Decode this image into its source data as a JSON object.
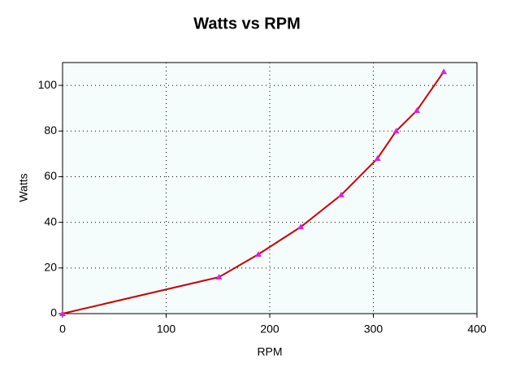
{
  "chart_data": {
    "type": "line",
    "title": "Watts vs RPM",
    "x_label": "RPM",
    "y_label": "Watts",
    "x": [
      0,
      151,
      189,
      230,
      269,
      304,
      322,
      342,
      368
    ],
    "series": [
      {
        "name": "Watts",
        "color": "#cc0000",
        "marker_color": "#e020e0",
        "values": [
          0,
          16,
          26,
          38,
          52,
          68,
          80,
          89,
          106
        ]
      }
    ],
    "xlim": [
      0,
      400
    ],
    "xticks": [
      0,
      100,
      200,
      300,
      400
    ],
    "ylim": [
      0,
      110
    ],
    "yticks": [
      0,
      20,
      40,
      60,
      80,
      100
    ],
    "grid": true
  }
}
